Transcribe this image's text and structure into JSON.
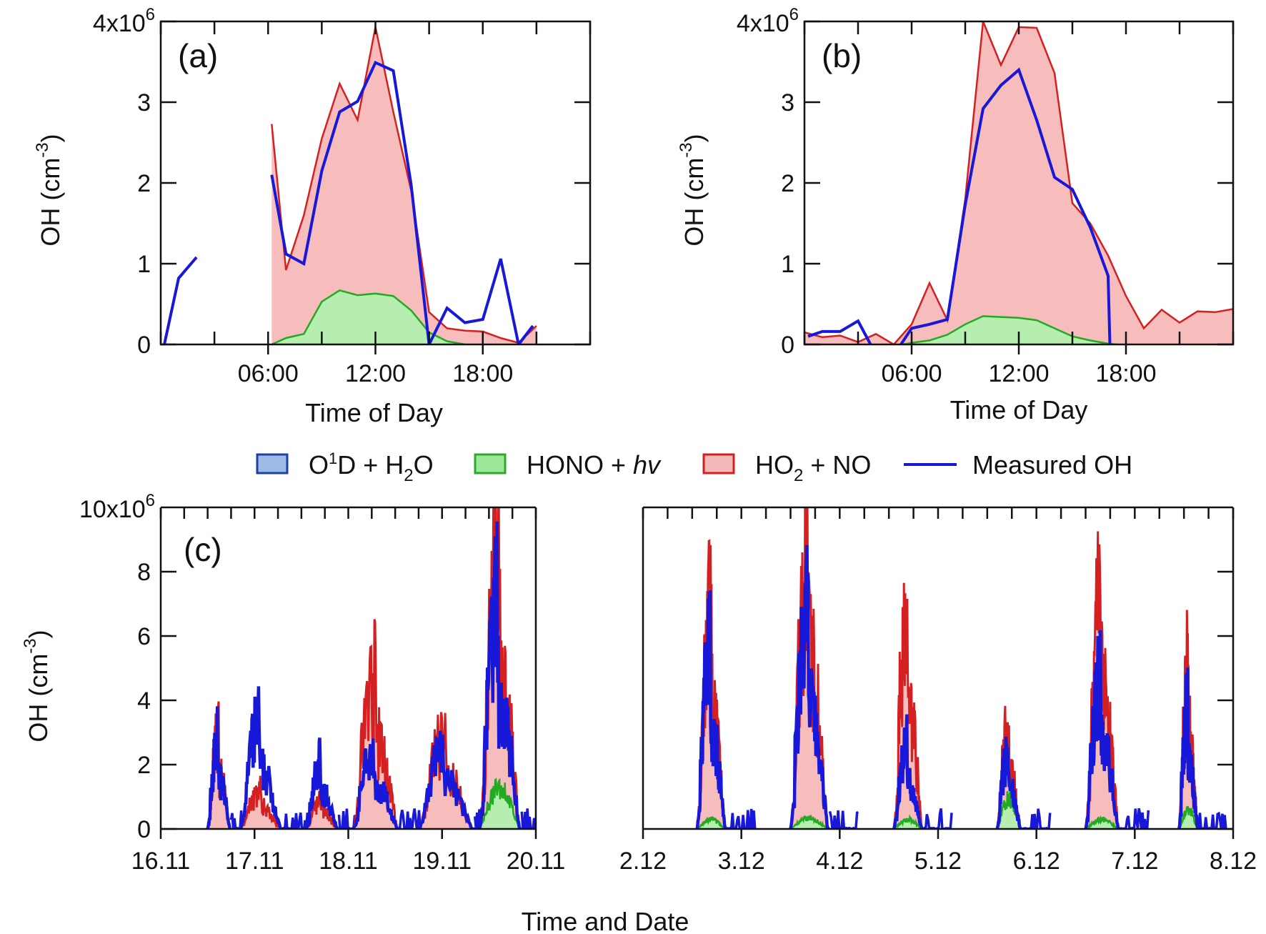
{
  "legend": {
    "items": [
      {
        "label": "O¹D + H₂O",
        "type": "box",
        "fill": "#9dbbe6",
        "stroke": "#1f3fa8"
      },
      {
        "label": "HONO + hv",
        "type": "box",
        "fill": "#9ee89a",
        "stroke": "#2fa82f"
      },
      {
        "label": "HO₂ + NO",
        "type": "box",
        "fill": "#f5b8b8",
        "stroke": "#cc2222"
      },
      {
        "label": "Measured OH",
        "type": "line",
        "stroke": "#1a1ad6"
      }
    ]
  },
  "colors": {
    "ho2_fill": "#f7bcbc",
    "ho2_line": "#d42020",
    "hono_fill": "#b6eeb0",
    "hono_line": "#22aa22",
    "measured": "#1818d8"
  },
  "chart_data": [
    {
      "id": "a",
      "type": "area",
      "panel_label": "(a)",
      "xlabel": "Time of Day",
      "ylabel": "OH (cm⁻³)",
      "ylim": [
        0,
        4000000
      ],
      "y_top_label": "4x10⁶",
      "xlim": [
        0,
        24
      ],
      "x_ticks": [
        {
          "v": 6,
          "label": "06:00"
        },
        {
          "v": 12,
          "label": "12:00"
        },
        {
          "v": 18,
          "label": "18:00"
        }
      ],
      "y_ticks": [
        {
          "v": 0,
          "label": "0"
        },
        {
          "v": 1000000,
          "label": "1"
        },
        {
          "v": 2000000,
          "label": "2"
        },
        {
          "v": 3000000,
          "label": "3"
        }
      ],
      "series": [
        {
          "name": "HO₂ + NO",
          "x": [
            6.2,
            7,
            8,
            9,
            10,
            11,
            12,
            13,
            14,
            15,
            16,
            17,
            18,
            19,
            20,
            21
          ],
          "values": [
            2730000,
            920000,
            1600000,
            2550000,
            3230000,
            2780000,
            3930000,
            2880000,
            1900000,
            400000,
            200000,
            170000,
            160000,
            80000,
            20000,
            230000
          ]
        },
        {
          "name": "HONO + hv",
          "x": [
            6.2,
            7,
            8,
            9,
            10,
            11,
            12,
            13,
            14,
            15,
            16,
            17
          ],
          "values": [
            0,
            80000,
            130000,
            530000,
            670000,
            610000,
            630000,
            600000,
            420000,
            150000,
            40000,
            0
          ]
        },
        {
          "name": "Measured OH",
          "segments": [
            {
              "x": [
                0.2,
                1,
                2
              ],
              "values": [
                0,
                820000,
                1080000
              ]
            },
            {
              "x": [
                6.2,
                7,
                8,
                9,
                10,
                11,
                12,
                13,
                14,
                15,
                16,
                17,
                18,
                19,
                20,
                20.8
              ],
              "values": [
                2100000,
                1120000,
                1000000,
                2150000,
                2880000,
                3010000,
                3490000,
                3390000,
                1970000,
                0,
                450000,
                270000,
                310000,
                1060000,
                0,
                230000
              ]
            }
          ]
        }
      ]
    },
    {
      "id": "b",
      "type": "area",
      "panel_label": "(b)",
      "xlabel": "Time of Day",
      "ylabel": "OH (cm⁻³)",
      "ylim": [
        0,
        4000000
      ],
      "y_top_label": "4x10⁶",
      "xlim": [
        0,
        24
      ],
      "x_ticks": [
        {
          "v": 6,
          "label": "06:00"
        },
        {
          "v": 12,
          "label": "12:00"
        },
        {
          "v": 18,
          "label": "18:00"
        }
      ],
      "y_ticks": [
        {
          "v": 0,
          "label": "0"
        },
        {
          "v": 1000000,
          "label": "1"
        },
        {
          "v": 2000000,
          "label": "2"
        },
        {
          "v": 3000000,
          "label": "3"
        }
      ],
      "series": [
        {
          "name": "HO₂ + NO",
          "x": [
            0,
            1,
            2,
            3,
            4,
            5,
            6,
            7,
            8,
            9,
            10,
            11,
            12,
            13,
            14,
            15,
            16,
            17,
            18,
            19,
            20,
            21,
            22,
            23,
            24
          ],
          "values": [
            150000,
            90000,
            110000,
            30000,
            130000,
            0,
            250000,
            760000,
            300000,
            1800000,
            4000000,
            3460000,
            3930000,
            3920000,
            3360000,
            1750000,
            1500000,
            1100000,
            600000,
            200000,
            430000,
            270000,
            410000,
            400000,
            440000
          ]
        },
        {
          "name": "HONO + hv",
          "x": [
            5.5,
            6,
            7,
            8,
            9,
            10,
            11,
            12,
            13,
            14,
            15,
            16,
            17,
            17.5
          ],
          "values": [
            0,
            20000,
            50000,
            120000,
            250000,
            350000,
            340000,
            330000,
            300000,
            200000,
            100000,
            50000,
            10000,
            0
          ]
        },
        {
          "name": "Measured OH",
          "segments": [
            {
              "x": [
                0.2,
                1,
                2,
                3,
                3.7
              ],
              "values": [
                100000,
                160000,
                160000,
                290000,
                0
              ]
            },
            {
              "x": [
                5.4,
                6,
                7,
                8,
                9,
                10,
                11,
                12,
                13,
                14,
                15,
                16,
                17,
                17.1
              ],
              "values": [
                0,
                200000,
                250000,
                310000,
                1730000,
                2920000,
                3210000,
                3400000,
                2780000,
                2070000,
                1920000,
                1450000,
                850000,
                0
              ]
            }
          ]
        }
      ]
    },
    {
      "id": "c",
      "type": "area",
      "panel_label": "(c)",
      "xlabel": "Time and Date",
      "ylabel": "OH (cm⁻³)",
      "ylim": [
        0,
        10000000
      ],
      "y_top_label": "10x10⁶",
      "y_ticks": [
        {
          "v": 0,
          "label": "0"
        },
        {
          "v": 2000000,
          "label": "2"
        },
        {
          "v": 4000000,
          "label": "4"
        },
        {
          "v": 6000000,
          "label": "6"
        },
        {
          "v": 8000000,
          "label": "8"
        }
      ],
      "left_range": {
        "xlim": [
          16,
          20
        ],
        "x_ticks": [
          {
            "v": 16,
            "label": "16.11"
          },
          {
            "v": 17,
            "label": "17.11"
          },
          {
            "v": 18,
            "label": "18.11"
          },
          {
            "v": 19,
            "label": "19.11"
          },
          {
            "v": 20,
            "label": "20.11"
          }
        ]
      },
      "right_range": {
        "xlim": [
          2,
          8
        ],
        "x_ticks": [
          {
            "v": 2,
            "label": "2.12"
          },
          {
            "v": 3,
            "label": "3.12"
          },
          {
            "v": 4,
            "label": "4.12"
          },
          {
            "v": 5,
            "label": "5.12"
          },
          {
            "v": 6,
            "label": "6.12"
          },
          {
            "v": 7,
            "label": "7.12"
          },
          {
            "v": 8,
            "label": "8.12"
          }
        ]
      },
      "day_peaks": [
        {
          "range": "left",
          "start": 16.5,
          "end": 16.75,
          "ho2": 2900000,
          "meas": 2800000,
          "hono": 0
        },
        {
          "range": "left",
          "start": 16.85,
          "end": 17.3,
          "ho2": 1200000,
          "meas": 3400000,
          "hono": 0
        },
        {
          "range": "left",
          "start": 17.55,
          "end": 17.9,
          "ho2": 900000,
          "meas": 2100000,
          "hono": 0
        },
        {
          "range": "left",
          "start": 18.05,
          "end": 18.55,
          "ho2": 4600000,
          "meas": 2500000,
          "hono": 0
        },
        {
          "range": "left",
          "start": 18.75,
          "end": 19.35,
          "ho2": 2800000,
          "meas": 2600000,
          "hono": 0
        },
        {
          "range": "left",
          "start": 19.4,
          "end": 19.85,
          "ho2": 8500000,
          "meas": 7100000,
          "hono": 1500000
        },
        {
          "range": "right",
          "start": 2.55,
          "end": 2.85,
          "ho2": 6500000,
          "meas": 5800000,
          "hono": 350000
        },
        {
          "range": "right",
          "start": 3.5,
          "end": 3.9,
          "ho2": 8600000,
          "meas": 6900000,
          "hono": 400000
        },
        {
          "range": "right",
          "start": 4.55,
          "end": 4.85,
          "ho2": 6900000,
          "meas": 2600000,
          "hono": 350000
        },
        {
          "range": "right",
          "start": 5.6,
          "end": 5.85,
          "ho2": 3200000,
          "meas": 2500000,
          "hono": 1100000
        },
        {
          "range": "right",
          "start": 6.5,
          "end": 6.85,
          "ho2": 7100000,
          "meas": 4900000,
          "hono": 350000
        },
        {
          "range": "right",
          "start": 7.45,
          "end": 7.65,
          "ho2": 5200000,
          "meas": 3800000,
          "hono": 700000
        }
      ]
    }
  ]
}
